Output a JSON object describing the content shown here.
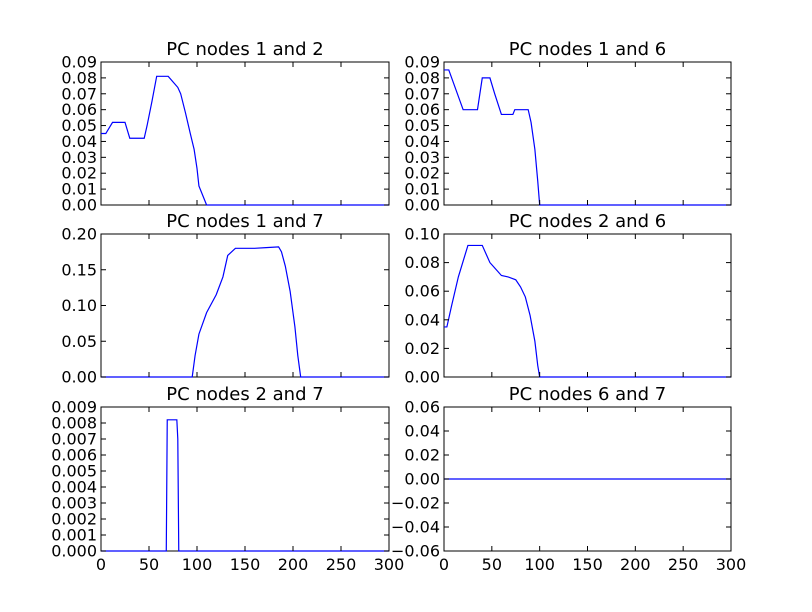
{
  "chart_data": [
    {
      "type": "line",
      "title": "PC nodes 1 and  2",
      "xlim": [
        0,
        300
      ],
      "ylim": [
        0,
        0.09
      ],
      "xticks": [],
      "yticks": [
        "0.00",
        "0.01",
        "0.02",
        "0.03",
        "0.04",
        "0.05",
        "0.06",
        "0.07",
        "0.08",
        "0.09"
      ],
      "series": [
        {
          "color": "#0000ff",
          "x": [
            0,
            5,
            12,
            25,
            30,
            45,
            48,
            53,
            58,
            70,
            80,
            83,
            88,
            93,
            97,
            100,
            102,
            110,
            111,
            300
          ],
          "y": [
            0.045,
            0.045,
            0.052,
            0.052,
            0.042,
            0.042,
            0.05,
            0.065,
            0.081,
            0.081,
            0.074,
            0.07,
            0.058,
            0.045,
            0.035,
            0.023,
            0.012,
            0.0,
            0.0,
            0.0
          ]
        }
      ]
    },
    {
      "type": "line",
      "title": "PC nodes 1 and  6",
      "xlim": [
        0,
        300
      ],
      "ylim": [
        0,
        0.09
      ],
      "xticks": [],
      "yticks": [
        "0.00",
        "0.01",
        "0.02",
        "0.03",
        "0.04",
        "0.05",
        "0.06",
        "0.07",
        "0.08",
        "0.09"
      ],
      "series": [
        {
          "color": "#0000ff",
          "x": [
            0,
            5,
            20,
            35,
            40,
            48,
            53,
            60,
            72,
            74,
            88,
            91,
            95,
            98,
            100,
            300
          ],
          "y": [
            0.085,
            0.085,
            0.06,
            0.06,
            0.08,
            0.08,
            0.07,
            0.057,
            0.057,
            0.06,
            0.06,
            0.052,
            0.035,
            0.015,
            0.0,
            0.0
          ]
        }
      ]
    },
    {
      "type": "line",
      "title": "PC nodes 1 and  7",
      "xlim": [
        0,
        300
      ],
      "ylim": [
        0,
        0.2
      ],
      "xticks": [],
      "yticks": [
        "0.00",
        "0.05",
        "0.10",
        "0.15",
        "0.20"
      ],
      "series": [
        {
          "color": "#0000ff",
          "x": [
            0,
            95,
            98,
            102,
            110,
            120,
            127,
            132,
            140,
            160,
            172,
            185,
            188,
            192,
            197,
            202,
            205,
            208,
            300
          ],
          "y": [
            0.0,
            0.0,
            0.03,
            0.06,
            0.09,
            0.115,
            0.14,
            0.17,
            0.18,
            0.18,
            0.181,
            0.182,
            0.175,
            0.155,
            0.12,
            0.07,
            0.03,
            0.0,
            0.0
          ]
        }
      ]
    },
    {
      "type": "line",
      "title": "PC nodes 2 and  6",
      "xlim": [
        0,
        300
      ],
      "ylim": [
        0,
        0.1
      ],
      "xticks": [],
      "yticks": [
        "0.00",
        "0.02",
        "0.04",
        "0.06",
        "0.08",
        "0.10"
      ],
      "series": [
        {
          "color": "#0000ff",
          "x": [
            0,
            3,
            8,
            15,
            25,
            40,
            48,
            52,
            60,
            67,
            75,
            80,
            85,
            90,
            95,
            98,
            100,
            300
          ],
          "y": [
            0.035,
            0.035,
            0.05,
            0.07,
            0.092,
            0.092,
            0.08,
            0.077,
            0.071,
            0.07,
            0.068,
            0.063,
            0.056,
            0.043,
            0.025,
            0.008,
            0.0,
            0.0
          ]
        }
      ]
    },
    {
      "type": "line",
      "title": "PC nodes 2 and  7",
      "xlim": [
        0,
        300
      ],
      "ylim": [
        0,
        0.009
      ],
      "xticks": [
        "0",
        "50",
        "100",
        "150",
        "200",
        "250",
        "300"
      ],
      "yticks": [
        "0.000",
        "0.001",
        "0.002",
        "0.003",
        "0.004",
        "0.005",
        "0.006",
        "0.007",
        "0.008",
        "0.009"
      ],
      "series": [
        {
          "color": "#0000ff",
          "x": [
            0,
            68,
            69,
            79,
            80,
            81,
            300
          ],
          "y": [
            0.0,
            0.0,
            0.0082,
            0.0082,
            0.007,
            0.0,
            0.0
          ]
        }
      ]
    },
    {
      "type": "line",
      "title": "PC nodes 6 and  7",
      "xlim": [
        0,
        300
      ],
      "ylim": [
        -0.06,
        0.06
      ],
      "xticks": [
        "0",
        "50",
        "100",
        "150",
        "200",
        "250",
        "300"
      ],
      "yticks": [
        "−0.06",
        "−0.04",
        "−0.02",
        "0.00",
        "0.02",
        "0.04",
        "0.06"
      ],
      "series": [
        {
          "color": "#0000ff",
          "x": [
            0,
            300
          ],
          "y": [
            0.0,
            0.0
          ]
        }
      ]
    }
  ]
}
